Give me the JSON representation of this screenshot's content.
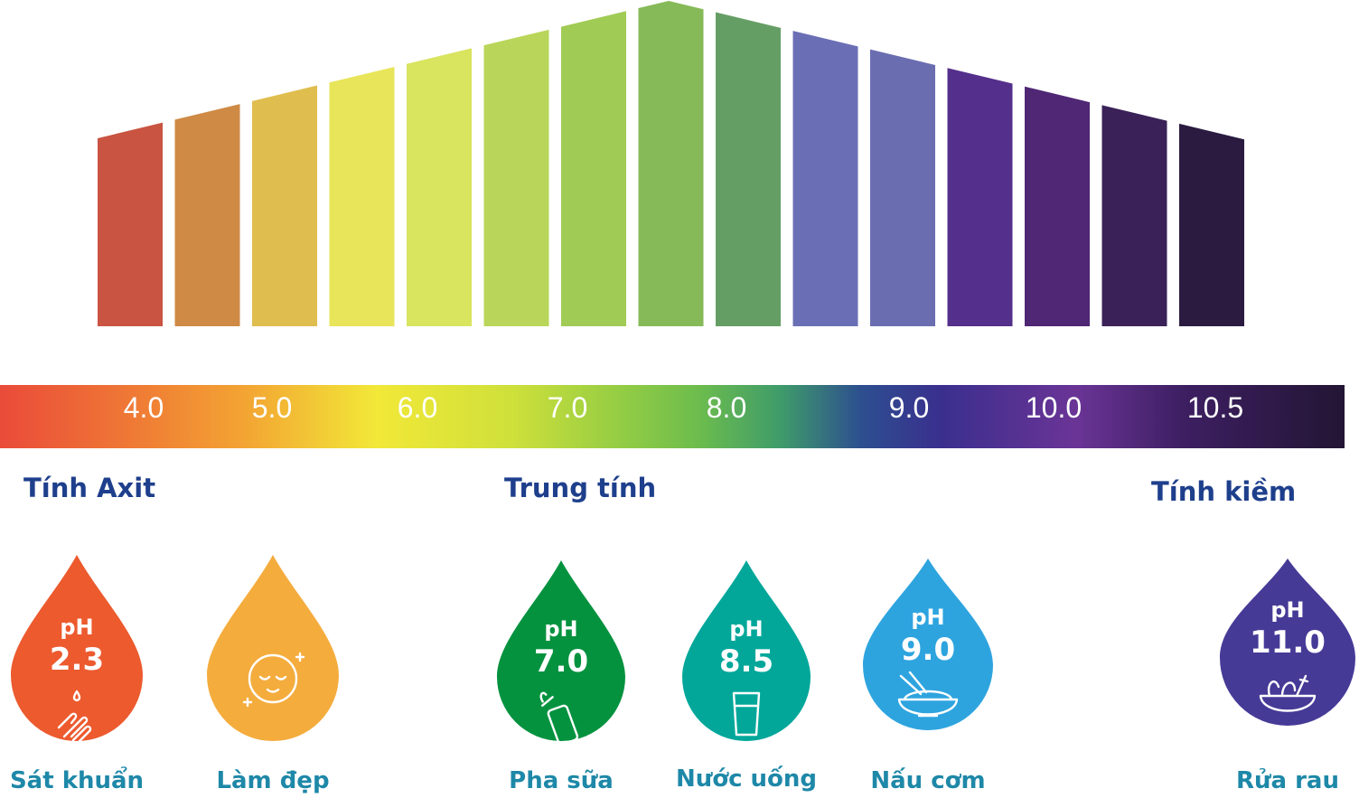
{
  "colors": {
    "bars": [
      "#c95441",
      "#cf8a45",
      "#dfbe4f",
      "#e8e55a",
      "#d9e45f",
      "#b9d65a",
      "#a0cb55",
      "#86ba58",
      "#659e64",
      "#6a6fb5",
      "#6a6db0",
      "#542f8c",
      "#4f2775",
      "#3a2158",
      "#2b1b40"
    ],
    "category_text": "#1e3f8c",
    "use_label_text": "#1e88a8",
    "drops": [
      "#ec5a2e",
      "#f4ac3d",
      "#05923f",
      "#02a79a",
      "#2ea4df",
      "#463a97"
    ]
  },
  "scale": {
    "ticks": [
      "4.0",
      "5.0",
      "6.0",
      "7.0",
      "8.0",
      "9.0",
      "10.0",
      "10.5"
    ]
  },
  "categories": {
    "acid": "Tính Axit",
    "neutral": "Trung tính",
    "alkaline": "Tính kiềm"
  },
  "uses": [
    {
      "ph_word": "pH",
      "ph_value": "2.3",
      "label": "Sát khuẩn",
      "icon": "hand-washing-icon"
    },
    {
      "ph_word": "",
      "ph_value": "",
      "label": "Làm đẹp",
      "icon": "beauty-face-icon"
    },
    {
      "ph_word": "pH",
      "ph_value": "7.0",
      "label": "Pha sữa",
      "icon": "baby-bottle-icon"
    },
    {
      "ph_word": "pH",
      "ph_value": "8.5",
      "label": "Nước uống",
      "icon": "drinking-glass-icon"
    },
    {
      "ph_word": "pH",
      "ph_value": "9.0",
      "label": "Nấu cơm",
      "icon": "rice-bowl-icon"
    },
    {
      "ph_word": "pH",
      "ph_value": "11.0",
      "label": "Rửa rau",
      "icon": "vegetable-bowl-icon"
    }
  ]
}
